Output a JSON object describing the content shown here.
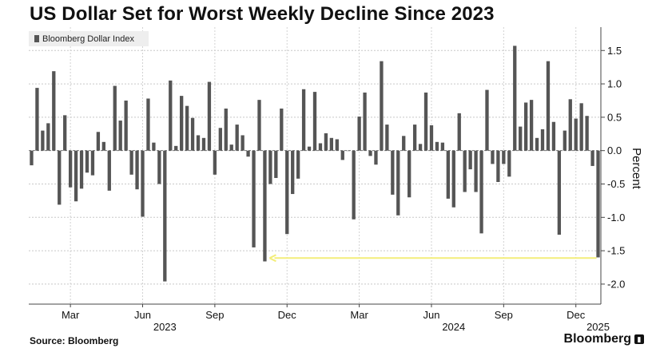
{
  "chart_data": {
    "type": "bar",
    "title": "US Dollar Set for Worst Weekly Decline Since 2023",
    "ylabel": "Percent",
    "xlabel": "",
    "ylim": [
      -2.3,
      1.85
    ],
    "yticks": [
      1.5,
      1.0,
      0.5,
      0.0,
      -0.5,
      -1.0,
      -1.5,
      -2.0
    ],
    "ytick_labels": [
      "1.5",
      "1.0",
      "0.5",
      "0.0",
      "-0.5",
      "-1.0",
      "-1.5",
      "-2.0"
    ],
    "xticks": [
      {
        "label": "Mar",
        "index": 7
      },
      {
        "label": "Jun",
        "index": 20
      },
      {
        "label": "Sep",
        "index": 33
      },
      {
        "label": "Dec",
        "index": 46
      },
      {
        "label": "Mar",
        "index": 59
      },
      {
        "label": "Jun",
        "index": 72
      },
      {
        "label": "Sep",
        "index": 85
      },
      {
        "label": "Dec",
        "index": 98
      }
    ],
    "year_labels": [
      {
        "label": "2023",
        "index": 24
      },
      {
        "label": "2024",
        "index": 76
      },
      {
        "label": "2025",
        "index": 102
      }
    ],
    "series": [
      {
        "name": "Bloomberg Dollar Index",
        "color": "#555555",
        "values": [
          -0.22,
          0.94,
          0.3,
          0.41,
          1.19,
          -0.81,
          0.53,
          -0.55,
          -0.76,
          -0.57,
          -0.33,
          -0.37,
          0.28,
          0.13,
          -0.6,
          0.97,
          0.45,
          0.75,
          -0.36,
          -0.58,
          -0.99,
          0.78,
          0.12,
          -0.5,
          -1.96,
          1.05,
          0.07,
          0.82,
          0.67,
          0.49,
          0.23,
          0.19,
          1.03,
          -0.36,
          0.34,
          0.63,
          0.09,
          0.39,
          0.23,
          -0.09,
          -1.45,
          0.76,
          -1.66,
          -0.5,
          -0.41,
          0.63,
          -1.25,
          -0.65,
          -0.42,
          0.92,
          0.06,
          0.88,
          0.11,
          0.26,
          0.19,
          0.17,
          -0.14,
          0.0,
          -1.03,
          0.51,
          0.87,
          -0.08,
          -0.21,
          1.34,
          0.39,
          -0.66,
          -0.97,
          0.22,
          -0.7,
          0.39,
          0.1,
          0.87,
          0.38,
          0.13,
          0.12,
          -0.72,
          -0.85,
          0.56,
          -0.62,
          -0.28,
          -0.62,
          -1.24,
          0.91,
          -0.2,
          -0.47,
          -0.2,
          -0.39,
          1.57,
          0.36,
          0.72,
          0.76,
          0.19,
          0.32,
          1.34,
          0.43,
          -1.26,
          0.3,
          0.77,
          0.48,
          0.71,
          0.52,
          -0.23,
          -1.6
        ]
      }
    ],
    "annotations": [
      {
        "type": "arrow",
        "color": "#f3ee7a",
        "from_index": 102,
        "to_index": 42,
        "y": -1.61,
        "note": "points to the -1.66 decline"
      }
    ],
    "legend": {
      "position": "top-left",
      "label": "Bloomberg Dollar Index"
    },
    "grid": true
  },
  "footer": {
    "source": "Source:  Bloomberg",
    "brand": "Bloomberg"
  }
}
